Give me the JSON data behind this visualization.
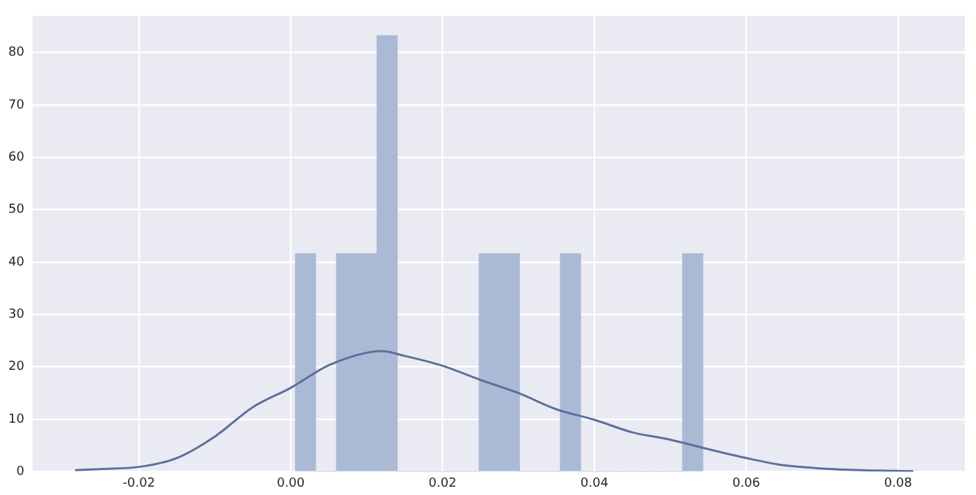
{
  "chart_data": {
    "type": "histogram",
    "series": [
      {
        "color": "#abbad4",
        "bins": [
          0.0006,
          0.0033,
          0.006,
          0.0087,
          0.0114,
          0.014,
          0.0167,
          0.0194,
          0.0221,
          0.0248,
          0.0275,
          0.0301,
          0.0328,
          0.0355,
          0.0382,
          0.0409,
          0.0436,
          0.0463,
          0.0489,
          0.0516,
          0.0543
        ],
        "values": [
          41.6,
          0,
          41.6,
          41.6,
          83.2,
          0,
          0,
          0,
          0,
          41.6,
          41.6,
          0,
          0,
          41.6,
          0,
          0,
          0,
          0,
          0,
          41.6
        ]
      },
      {
        "type": "line",
        "color": "#5a6f9c",
        "x": [
          -0.0284,
          -0.025,
          -0.02,
          -0.015,
          -0.01,
          -0.005,
          0,
          0.005,
          0.01,
          0.012,
          0.015,
          0.02,
          0.025,
          0.03,
          0.035,
          0.04,
          0.045,
          0.05,
          0.055,
          0.06,
          0.065,
          0.07,
          0.075,
          0.082
        ],
        "values": [
          0.3,
          0.5,
          0.9,
          2.6,
          6.7,
          12.3,
          16,
          20.3,
          22.7,
          23,
          22.1,
          20.2,
          17.5,
          15,
          11.9,
          9.9,
          7.5,
          6.1,
          4.3,
          2.6,
          1.2,
          0.6,
          0.3,
          0.1
        ]
      }
    ],
    "xlim": [
      -0.034,
      0.0888
    ],
    "ylim": [
      0,
      87
    ],
    "xticks": [
      {
        "value": -0.02,
        "label": "-0.02"
      },
      {
        "value": 0,
        "label": "0.00"
      },
      {
        "value": 0.02,
        "label": "0.02"
      },
      {
        "value": 0.04,
        "label": "0.04"
      },
      {
        "value": 0.06,
        "label": "0.06"
      },
      {
        "value": 0.08,
        "label": "0.08"
      }
    ],
    "yticks": [
      0,
      10,
      20,
      30,
      40,
      50,
      60,
      70,
      80
    ],
    "grid": true
  }
}
